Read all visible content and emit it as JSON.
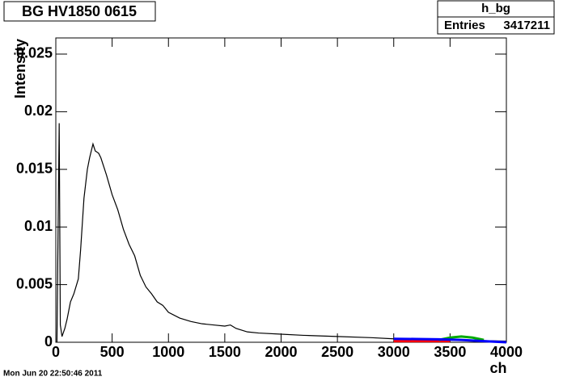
{
  "chart_data": {
    "type": "line",
    "title": "BG HV1850 0615",
    "stats": {
      "name": "h_bg",
      "entries_label": "Entries",
      "entries": 3417211
    },
    "ylabel": "Intensity",
    "xlabel": "ch",
    "timestamp": "Mon Jun 20 22:50:46 2011",
    "xlim": [
      0,
      4000
    ],
    "xticks": [
      0,
      500,
      1000,
      1500,
      2000,
      2500,
      3000,
      3500,
      4000
    ],
    "ylim": [
      0,
      0.0264
    ],
    "yticks": [
      0,
      0.005,
      0.01,
      0.015,
      0.02,
      0.025
    ],
    "grid": false,
    "series": [
      {
        "color": "#000000",
        "x": [
          10,
          30,
          40,
          55,
          80,
          100,
          130,
          160,
          200,
          220,
          250,
          280,
          300,
          330,
          350,
          380,
          400,
          450,
          500,
          550,
          600,
          650,
          700,
          750,
          800,
          850,
          900,
          950,
          1000,
          1100,
          1200,
          1300,
          1400,
          1500,
          1550,
          1600,
          1700,
          1800,
          2000,
          2200,
          2500,
          2800,
          3000,
          3500,
          4000
        ],
        "values": [
          0,
          0.019,
          0.0015,
          0.0005,
          0.0012,
          0.002,
          0.0035,
          0.0042,
          0.0055,
          0.008,
          0.0125,
          0.015,
          0.016,
          0.0172,
          0.0166,
          0.0164,
          0.016,
          0.0145,
          0.0128,
          0.0115,
          0.0098,
          0.0085,
          0.0075,
          0.0058,
          0.0048,
          0.0042,
          0.0035,
          0.0032,
          0.0026,
          0.0021,
          0.0018,
          0.0016,
          0.0015,
          0.0014,
          0.0015,
          0.0012,
          0.0009,
          0.0008,
          0.0007,
          0.0006,
          0.0005,
          0.0004,
          0.0003,
          0.0002,
          0.0001
        ]
      },
      {
        "color": "#ff0000",
        "x": [
          3000,
          3200,
          3400,
          3500
        ],
        "values": [
          0.0001,
          0.0001,
          0.0001,
          0.0001
        ]
      },
      {
        "color": "#00aa00",
        "x": [
          3400,
          3500,
          3600,
          3700,
          3800
        ],
        "values": [
          0.0002,
          0.0004,
          0.0005,
          0.0004,
          0.0002
        ]
      },
      {
        "color": "#0000ff",
        "x": [
          3000,
          3200,
          3400,
          3600,
          3800,
          4000
        ],
        "values": [
          0.0003,
          0.00028,
          0.00025,
          0.0002,
          0.0001,
          0
        ]
      }
    ]
  }
}
